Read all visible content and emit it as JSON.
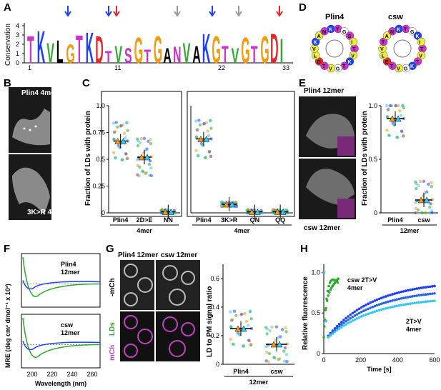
{
  "panels": {
    "A": {
      "letter": "A",
      "ylabel": "Conservation",
      "yticks": [
        "0",
        "1",
        "2",
        "3",
        "4"
      ],
      "xticks": [
        "1",
        "11",
        "22",
        "33"
      ],
      "logo_letters": [
        "T",
        "K",
        "V",
        "L",
        "G",
        "T",
        "K",
        "D",
        "T",
        "V",
        "S",
        "G",
        "T",
        "G",
        "A",
        "N",
        "V",
        "A",
        "K",
        "G",
        "T",
        "V",
        "G",
        "T",
        "G",
        "D",
        "I"
      ]
    },
    "B": {
      "letter": "B",
      "top_label": "Plin4 4mer",
      "bottom_label": "3K>R 4mer"
    },
    "C": {
      "letter": "C",
      "ylabel": "Fraction of LDs with protein",
      "yticks": [
        "0",
        "0.25",
        "0.5",
        "0.75",
        "1.0"
      ],
      "left_categories": [
        "Plin4",
        "2D>E",
        "NN"
      ],
      "left_group": "4mer",
      "right_categories": [
        "Plin4",
        "3K>R",
        "QN",
        "QQ"
      ],
      "right_group": "4mer",
      "left_means": [
        0.67,
        0.52,
        0.01
      ],
      "right_means": [
        0.69,
        0.08,
        0.01,
        0.01
      ]
    },
    "D": {
      "letter": "D",
      "wheel1": "Plin4",
      "wheel2": "csw"
    },
    "E": {
      "letter": "E",
      "top_label": "Plin4 12mer",
      "bottom_label": "csw 12mer",
      "ylabel": "Fraction of LDs with protein",
      "yticks": [
        "0",
        "0.5",
        "1.0"
      ],
      "categories": [
        "Plin4",
        "csw"
      ],
      "group": "12mer",
      "means": [
        0.88,
        0.12
      ]
    },
    "F": {
      "letter": "F",
      "ylabel": "MRE (deg cm² dmol⁻¹ x 10³)",
      "xlabel": "Wavelength (nm)",
      "xticks": [
        "200",
        "220",
        "240",
        "260"
      ],
      "top_label": "Plin4\n12mer",
      "bottom_label": "csw\n12mer"
    },
    "G": {
      "letter": "G",
      "col1": "Plin4 12mer",
      "col2": "csw 12mer",
      "row1": "-mCh",
      "row2a": "mCh",
      "row2b": "LDs",
      "ylabel": "LD to PM signal ratio",
      "yticks": [
        "0",
        "0.2",
        "0.4",
        "0.6"
      ],
      "categories": [
        "Plin4",
        "csw"
      ],
      "group": "12mer",
      "means": [
        0.25,
        0.14
      ]
    },
    "H": {
      "letter": "H",
      "ylabel": "Relative fluorescence",
      "xlabel": "Time [s]",
      "xticks": [
        "0",
        "200",
        "400",
        "600"
      ],
      "yticks": [
        "0",
        "0.5",
        "1.0"
      ],
      "series1_label": "csw 2T>V\n4mer",
      "series2_label": "2T>V\n4mer"
    }
  },
  "colors": {
    "blue": "#1f3fff",
    "red": "#e8262a",
    "green": "#2cab2c",
    "orange": "#f39c12",
    "purple": "#cc33cc",
    "yellow": "#eded3a",
    "light_blue": "#37c8f0"
  },
  "chart_data": [
    {
      "type": "scatter",
      "title": "",
      "ylabel": "Fraction of LDs with protein",
      "categories": [
        "Plin4",
        "2D>E",
        "NN",
        "Plin4",
        "3K>R",
        "QN",
        "QQ"
      ],
      "series": [
        {
          "values": [
            0.67,
            0.52,
            0.01,
            0.69,
            0.08,
            0.01,
            0.01
          ]
        }
      ],
      "ylim": [
        0,
        1
      ]
    },
    {
      "type": "scatter",
      "ylabel": "Fraction of LDs with protein",
      "categories": [
        "Plin4",
        "csw"
      ],
      "series": [
        {
          "values": [
            0.88,
            0.12
          ]
        }
      ],
      "ylim": [
        0,
        1
      ]
    },
    {
      "type": "scatter",
      "ylabel": "LD to PM signal ratio",
      "categories": [
        "Plin4",
        "csw"
      ],
      "series": [
        {
          "values": [
            0.25,
            0.14
          ]
        }
      ],
      "ylim": [
        0,
        0.7
      ]
    },
    {
      "type": "line",
      "xlabel": "Wavelength (nm)",
      "ylabel": "MRE (deg cm² dmol⁻¹ x 10³)",
      "xlim": [
        190,
        265
      ]
    },
    {
      "type": "scatter",
      "xlabel": "Time [s]",
      "ylabel": "Relative fluorescence",
      "xlim": [
        0,
        600
      ],
      "ylim": [
        0,
        1.1
      ]
    }
  ]
}
